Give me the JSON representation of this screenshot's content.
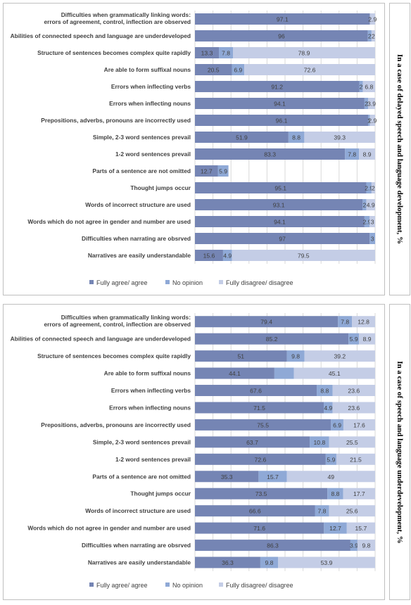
{
  "colors": {
    "agree": "#7585b4",
    "no_opinion": "#8fa9d6",
    "disagree": "#c4cde6",
    "grid": "#d9d9d9",
    "text": "#404040"
  },
  "chart_data": [
    {
      "type": "bar",
      "orientation": "horizontal",
      "stacked": true,
      "title": "In a case of delayed speech and language development, %",
      "xlim": [
        0,
        100
      ],
      "grid": true,
      "legend_position": "bottom",
      "categories": [
        "Difficulties when grammatically linking words: errors of agreement, control, inflection are observed",
        "Abilities of connected speech and language are underdeveloped",
        "Structure of sentences becomes complex quite rapidly",
        "Are able to form suffixal nouns",
        "Errors when inflecting verbs",
        "Errors when inflecting nouns",
        "Prepositions, adverbs, pronouns are incorrectly used",
        "Simple, 2-3 word sentences prevail",
        "1-2 word sentences prevail",
        "Parts of a sentence are not omitted",
        "Thought jumps occur",
        "Words of incorrect structure are used",
        "Words which do not agree in gender and number are used",
        "Difficulties when narrating are obsrved",
        "Narratives are easily understandable"
      ],
      "series": [
        {
          "name": "Fully agree/ agree",
          "values": [
            97.1,
            96,
            13.3,
            20.5,
            91.2,
            94.1,
            96.1,
            51.9,
            83.3,
            12.7,
            95.1,
            93.1,
            94.1,
            97,
            15.6
          ]
        },
        {
          "name": "No opinion",
          "values": [
            0,
            2,
            7.8,
            6.9,
            2,
            2,
            1,
            8.8,
            7.8,
            5.9,
            2.9,
            2,
            2.9,
            3,
            4.9
          ]
        },
        {
          "name": "Fully disagree/ disagree",
          "values": [
            2.9,
            2,
            78.9,
            72.6,
            6.8,
            3.9,
            2.9,
            39.3,
            8.9,
            0,
            2,
            4.9,
            3,
            0,
            79.5
          ]
        }
      ]
    },
    {
      "type": "bar",
      "orientation": "horizontal",
      "stacked": true,
      "title": "In a case of speech and language underdevelopment, %",
      "xlim": [
        0,
        100
      ],
      "grid": true,
      "legend_position": "bottom",
      "categories": [
        "Difficulties when grammatically linking words: errors of agreement, control, inflection are observed",
        "Abilities of connected speech and language are underdeveloped",
        "Structure of sentences becomes complex quite rapidly",
        "Are able to form suffixal nouns",
        "Errors when inflecting verbs",
        "Errors when inflecting nouns",
        "Prepositions, adverbs, pronouns are incorrectly used",
        "Simple, 2-3 word sentences prevail",
        "1-2 word sentences prevail",
        "Parts of a sentence are not omitted",
        "Thought jumps occur",
        "Words of incorrect structure are used",
        "Words which do not agree in gender and number are used",
        "Difficulties when narrating are obsrved",
        "Narratives are easily understandable"
      ],
      "series": [
        {
          "name": "Fully agree/ agree",
          "values": [
            79.4,
            85.2,
            51,
            44.1,
            67.6,
            71.5,
            75.5,
            63.7,
            72.6,
            35.3,
            73.5,
            66.6,
            71.6,
            86.3,
            36.3
          ]
        },
        {
          "name": "No opinion",
          "values": [
            7.8,
            5.9,
            9.8,
            10.8,
            8.8,
            4.9,
            6.9,
            10.8,
            5.9,
            15.7,
            8.8,
            7.8,
            12.7,
            3.9,
            9.8
          ]
        },
        {
          "name": "Fully disagree/ disagree",
          "values": [
            12.8,
            8.9,
            39.2,
            45.1,
            23.6,
            23.6,
            17.6,
            25.5,
            21.5,
            49,
            17.7,
            25.6,
            15.7,
            9.8,
            53.9
          ]
        }
      ],
      "hidden_labels": {
        "1": [
          3
        ]
      }
    }
  ]
}
